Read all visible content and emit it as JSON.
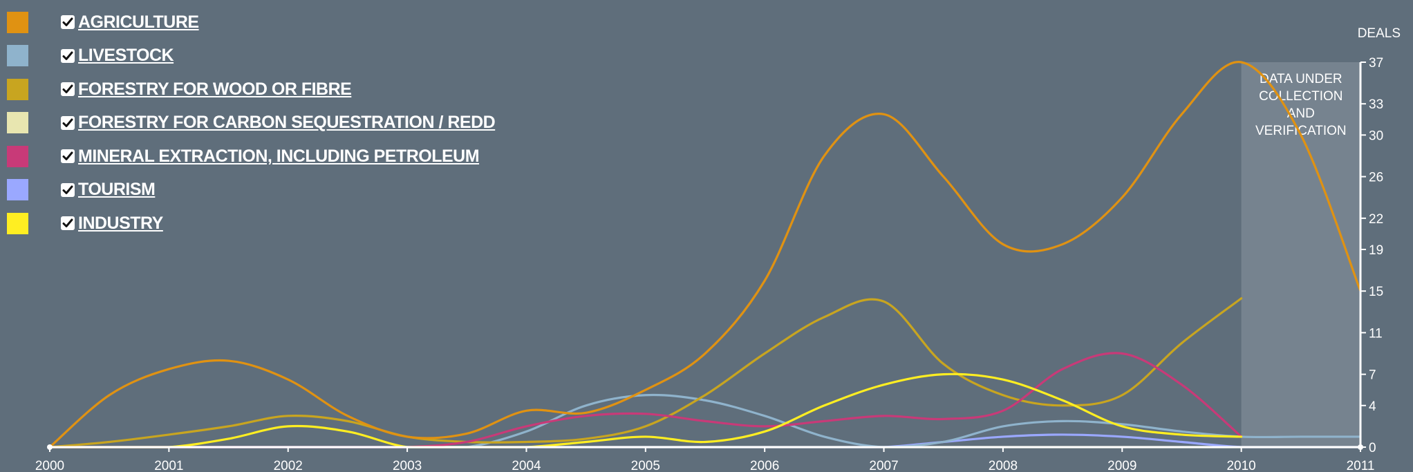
{
  "legend": [
    {
      "label": "AGRICULTURE",
      "color": "#e09212",
      "checked": true
    },
    {
      "label": "LIVESTOCK",
      "color": "#8fb3cc",
      "checked": true
    },
    {
      "label": "FORESTRY FOR WOOD OR FIBRE",
      "color": "#c8a520",
      "checked": true
    },
    {
      "label": "FORESTRY FOR CARBON SEQUESTRATION / REDD",
      "color": "#e8e6b0",
      "checked": true
    },
    {
      "label": "MINERAL EXTRACTION, INCLUDING PETROLEUM",
      "color": "#c83a78",
      "checked": true
    },
    {
      "label": "TOURISM",
      "color": "#9aa8ff",
      "checked": true
    },
    {
      "label": "INDUSTRY",
      "color": "#ffee22",
      "checked": true
    }
  ],
  "annotation": [
    "DATA UNDER",
    "COLLECTION",
    "AND",
    "VERIFICATION"
  ],
  "chart_data": {
    "type": "line",
    "x": [
      2000,
      2000.5,
      2001,
      2001.5,
      2002,
      2002.5,
      2003,
      2003.5,
      2004,
      2004.5,
      2005,
      2005.5,
      2006,
      2006.5,
      2007,
      2007.5,
      2008,
      2008.5,
      2009,
      2009.5,
      2010,
      2010.5,
      2011
    ],
    "ylabel": "DEALS",
    "ylim": [
      0,
      37
    ],
    "xticks": [
      "2000",
      "2001",
      "2002",
      "2003",
      "2004",
      "2005",
      "2006",
      "2007",
      "2008",
      "2009",
      "2010",
      "2011"
    ],
    "yticks": [
      0,
      4,
      7,
      11,
      15,
      19,
      22,
      26,
      30,
      33,
      37
    ],
    "annotation_region": [
      2010,
      2011
    ],
    "series": [
      {
        "name": "AGRICULTURE",
        "color": "#e09212",
        "values": [
          0,
          5,
          7.5,
          8.3,
          6.5,
          3,
          1,
          1.3,
          3.5,
          3.3,
          5.5,
          9,
          16,
          28,
          32,
          26,
          19.5,
          19.5,
          24,
          32,
          37,
          30,
          15
        ]
      },
      {
        "name": "LIVESTOCK",
        "color": "#8fb3cc",
        "values": [
          0,
          0,
          0,
          0,
          0,
          0,
          0,
          0,
          1.5,
          4,
          5,
          4.5,
          3,
          1,
          0,
          0.5,
          2,
          2.5,
          2.2,
          1.5,
          1,
          1,
          1
        ]
      },
      {
        "name": "FORESTRY FOR WOOD OR FIBRE",
        "color": "#c8a520",
        "values": [
          0,
          0.5,
          1.2,
          2,
          3,
          2.5,
          1,
          0.5,
          0.5,
          0.8,
          2,
          5,
          9,
          12.5,
          14,
          8,
          5,
          4,
          5,
          10,
          14.3,
          null,
          null
        ]
      },
      {
        "name": "FORESTRY FOR CARBON SEQUESTRATION / REDD",
        "color": "#e8e6b0",
        "values": [
          0,
          0,
          0,
          0,
          0,
          0,
          0,
          0,
          0,
          0,
          0,
          0,
          0,
          0,
          0,
          0,
          0,
          0,
          0,
          0,
          0,
          0,
          0
        ]
      },
      {
        "name": "MINERAL EXTRACTION, INCLUDING PETROLEUM",
        "color": "#c83a78",
        "values": [
          0,
          0,
          0,
          0,
          0,
          0,
          0,
          0.5,
          2,
          3,
          3.2,
          2.5,
          2,
          2.5,
          3,
          2.7,
          3.5,
          7.5,
          9,
          6,
          1,
          null,
          null
        ]
      },
      {
        "name": "TOURISM",
        "color": "#9aa8ff",
        "values": [
          0,
          0,
          0,
          0,
          0,
          0,
          0,
          0,
          0,
          0,
          0,
          0,
          0,
          0,
          0,
          0.5,
          1,
          1.2,
          1,
          0.5,
          0,
          0,
          0
        ]
      },
      {
        "name": "INDUSTRY",
        "color": "#ffee22",
        "values": [
          0,
          0,
          0,
          0.8,
          2,
          1.5,
          0,
          0,
          0,
          0.5,
          1,
          0.5,
          1.5,
          4,
          6,
          7,
          6.5,
          4.5,
          2,
          1.2,
          1,
          null,
          null
        ]
      }
    ]
  }
}
